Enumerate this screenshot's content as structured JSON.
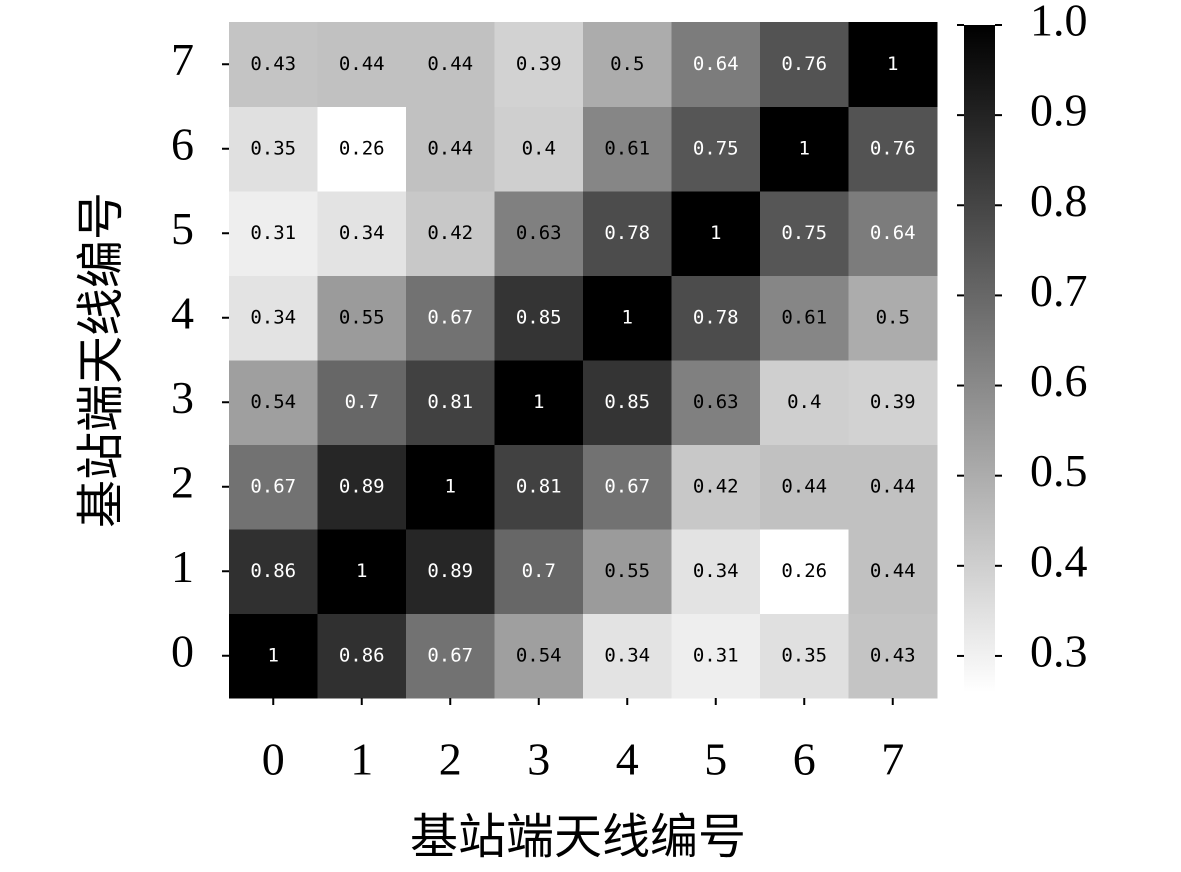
{
  "chart_data": {
    "type": "heatmap",
    "xlabel": "基站端天线编号",
    "ylabel": "基站端天线编号",
    "x_categories": [
      "0",
      "1",
      "2",
      "3",
      "4",
      "5",
      "6",
      "7"
    ],
    "y_categories": [
      "0",
      "1",
      "2",
      "3",
      "4",
      "5",
      "6",
      "7"
    ],
    "values": [
      [
        1,
        0.86,
        0.67,
        0.54,
        0.34,
        0.31,
        0.35,
        0.43
      ],
      [
        0.86,
        1,
        0.89,
        0.7,
        0.55,
        0.34,
        0.26,
        0.44
      ],
      [
        0.67,
        0.89,
        1,
        0.81,
        0.67,
        0.42,
        0.44,
        0.44
      ],
      [
        0.54,
        0.7,
        0.81,
        1,
        0.85,
        0.63,
        0.4,
        0.39
      ],
      [
        0.34,
        0.55,
        0.67,
        0.85,
        1,
        0.78,
        0.61,
        0.5
      ],
      [
        0.31,
        0.34,
        0.42,
        0.63,
        0.78,
        1,
        0.75,
        0.64
      ],
      [
        0.35,
        0.26,
        0.44,
        0.4,
        0.61,
        0.75,
        1,
        0.76
      ],
      [
        0.43,
        0.44,
        0.44,
        0.39,
        0.5,
        0.64,
        0.76,
        1
      ]
    ],
    "cmap_colors": [
      "#ffffff",
      "#000000"
    ],
    "clim": [
      0.26,
      1
    ],
    "colorbar_ticks": [
      0.3,
      0.4,
      0.5,
      0.6,
      0.7,
      0.8,
      0.9,
      {
        "value": 1,
        "label": "1.0"
      }
    ]
  }
}
